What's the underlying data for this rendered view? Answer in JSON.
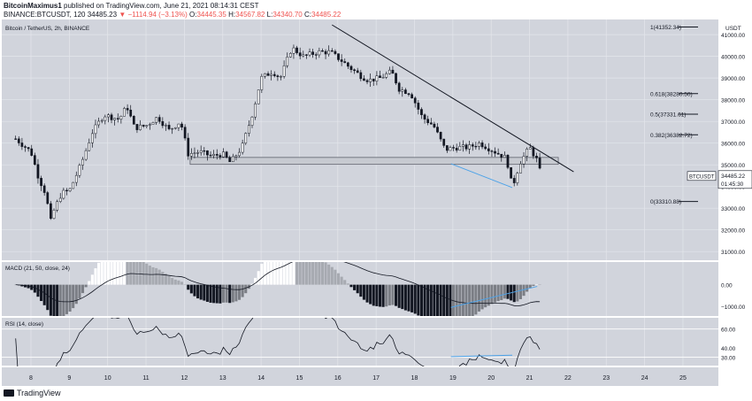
{
  "header": {
    "author": "BitcoinMaximus1",
    "published_text": "published on TradingView.com, June 21, 2021 08:14:31 CEST",
    "symbol_line": "BINANCE:BTCUSDT, 120",
    "last": "34485.23",
    "change": "▼ −1114.94 (−3.13%)",
    "o_label": "O:",
    "o_val": "34445.35",
    "h_label": "H:",
    "h_val": "34567.82",
    "l_label": "L:",
    "l_val": "34340.70",
    "c_label": "C:",
    "c_val": "34485.22"
  },
  "footer": {
    "brand": "TradingView"
  },
  "chart_data": [
    {
      "type": "candlestick",
      "title": "Bitcoin / TetherUS, 2h, BINANCE",
      "price_currency": "USDT",
      "y_ticks": [
        31000,
        32000,
        33000,
        34000,
        35000,
        36000,
        37000,
        38000,
        39000,
        40000,
        41000
      ],
      "ylim": [
        30600,
        41700
      ],
      "x_ticks": [
        "8",
        "9",
        "10",
        "11",
        "12",
        "13",
        "14",
        "15",
        "16",
        "17",
        "18",
        "19",
        "20",
        "21",
        "22",
        "23",
        "24",
        "25"
      ],
      "candles_per_day": 12,
      "close_path": [
        [
          7.6,
          36200
        ],
        [
          8.0,
          35600
        ],
        [
          8.2,
          34400
        ],
        [
          8.4,
          33600
        ],
        [
          8.5,
          32300
        ],
        [
          8.6,
          32900
        ],
        [
          8.8,
          33700
        ],
        [
          9.0,
          33800
        ],
        [
          9.3,
          35000
        ],
        [
          9.6,
          36500
        ],
        [
          9.9,
          37300
        ],
        [
          10.3,
          37100
        ],
        [
          10.5,
          37700
        ],
        [
          10.7,
          36700
        ],
        [
          11.0,
          36800
        ],
        [
          11.3,
          37200
        ],
        [
          11.6,
          36600
        ],
        [
          11.9,
          37000
        ],
        [
          12.1,
          35500
        ],
        [
          12.4,
          35600
        ],
        [
          12.7,
          35400
        ],
        [
          13.0,
          35500
        ],
        [
          13.2,
          35100
        ],
        [
          13.5,
          35800
        ],
        [
          13.8,
          37500
        ],
        [
          14.0,
          39000
        ],
        [
          14.3,
          39300
        ],
        [
          14.5,
          39000
        ],
        [
          14.8,
          40400
        ],
        [
          15.1,
          40000
        ],
        [
          15.5,
          40200
        ],
        [
          15.8,
          40200
        ],
        [
          16.1,
          39800
        ],
        [
          16.3,
          39500
        ],
        [
          16.6,
          39100
        ],
        [
          16.8,
          38900
        ],
        [
          17.1,
          39000
        ],
        [
          17.4,
          39300
        ],
        [
          17.6,
          38500
        ],
        [
          17.9,
          38300
        ],
        [
          18.2,
          37200
        ],
        [
          18.5,
          36800
        ],
        [
          18.8,
          35700
        ],
        [
          19.1,
          35800
        ],
        [
          19.4,
          35800
        ],
        [
          19.7,
          36000
        ],
        [
          19.9,
          35800
        ],
        [
          20.2,
          35500
        ],
        [
          20.4,
          35300
        ],
        [
          20.55,
          33950
        ],
        [
          20.75,
          35100
        ],
        [
          21.0,
          35800
        ],
        [
          21.2,
          35200
        ],
        [
          21.3,
          34485
        ]
      ],
      "support_zone": [
        35020,
        35340
      ],
      "annotations": [
        {
          "label": "1(41352.34)",
          "price": 41352.34
        },
        {
          "label": "0.618(38280.50)",
          "price": 38280.5
        },
        {
          "label": "0.5(37331.61)",
          "price": 37331.61
        },
        {
          "label": "0.382(36382.72)",
          "price": 36382.72
        },
        {
          "label": "0(33310.88)",
          "price": 33310.88
        }
      ],
      "price_tag": {
        "symbol": "BTCUSDT",
        "price": "34485.22",
        "countdown": "01:45:30",
        "value": 34485.22
      }
    },
    {
      "type": "histogram",
      "title": "MACD (21, 50, close, 24)",
      "y_tick_labels": [
        "0.00",
        "−1000.00"
      ],
      "y_ticks": [
        0,
        -1000
      ],
      "ylim": [
        -1450,
        1050
      ]
    },
    {
      "type": "line",
      "title": "RSI (14, close)",
      "y_tick_labels": [
        "60.00",
        "40.00",
        "30.00"
      ],
      "y_ticks": [
        60,
        40,
        30
      ],
      "ylim": [
        20,
        72
      ],
      "bands": [
        30,
        60
      ]
    }
  ]
}
